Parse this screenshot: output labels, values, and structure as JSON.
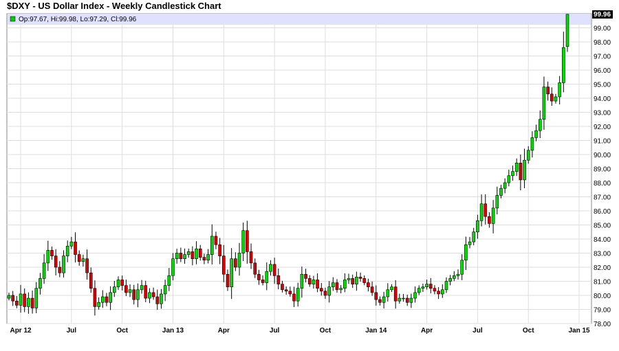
{
  "chart_data": {
    "type": "candlestick",
    "title": "$DXY - US Dollar Index - Weekly Candlestick Chart",
    "legend": {
      "placement": "top-left",
      "text": "Op:97.67, Hi:99.98, Lo:97.29, Cl:99.96",
      "color": "#00cc00"
    },
    "last_value_label": "99.96",
    "ylim": [
      78.0,
      100.0
    ],
    "y_ticks": [
      "78.00",
      "79.00",
      "80.00",
      "81.00",
      "82.00",
      "83.00",
      "84.00",
      "85.00",
      "86.00",
      "87.00",
      "88.00",
      "89.00",
      "90.00",
      "91.00",
      "92.00",
      "93.00",
      "94.00",
      "95.00",
      "96.00",
      "97.00",
      "98.00",
      "99.00"
    ],
    "x_ticks": [
      {
        "label": "Apr 12",
        "week": 3
      },
      {
        "label": "Jul",
        "week": 16
      },
      {
        "label": "Oct",
        "week": 29
      },
      {
        "label": "Jan 13",
        "week": 42
      },
      {
        "label": "Apr",
        "week": 55
      },
      {
        "label": "Jul",
        "week": 68
      },
      {
        "label": "Oct",
        "week": 81
      },
      {
        "label": "Jan 14",
        "week": 94
      },
      {
        "label": "Apr",
        "week": 107
      },
      {
        "label": "Jul",
        "week": 120
      },
      {
        "label": "Oct",
        "week": 133
      },
      {
        "label": "Jan 15",
        "week": 146
      }
    ],
    "colors": {
      "up": "#00dd00",
      "down": "#dd0000",
      "wick": "#000000",
      "grid": "#dddddd",
      "highlight": "#e0e0ff"
    },
    "weekly_close": [
      80.0,
      79.6,
      79.3,
      80.1,
      79.2,
      79.8,
      79.1,
      80.5,
      81.2,
      82.3,
      83.2,
      82.8,
      82.0,
      81.6,
      82.8,
      83.5,
      83.8,
      82.9,
      82.4,
      82.6,
      81.6,
      80.5,
      79.2,
      79.5,
      79.9,
      79.5,
      80.2,
      80.6,
      81.1,
      80.7,
      80.2,
      80.4,
      79.7,
      80.4,
      80.7,
      79.8,
      80.2,
      79.9,
      79.4,
      80.1,
      80.7,
      81.4,
      82.6,
      83.0,
      82.6,
      82.9,
      83.1,
      82.6,
      83.3,
      82.7,
      82.5,
      82.9,
      84.2,
      83.6,
      82.8,
      81.5,
      80.6,
      82.6,
      82.0,
      83.0,
      84.6,
      83.1,
      82.3,
      81.5,
      81.1,
      80.9,
      81.7,
      82.2,
      81.4,
      80.8,
      80.4,
      80.3,
      80.1,
      79.6,
      80.5,
      81.5,
      81.2,
      80.8,
      81.1,
      80.5,
      80.3,
      80.0,
      80.6,
      80.9,
      80.4,
      80.5,
      81.1,
      81.2,
      80.8,
      81.3,
      81.2,
      80.9,
      80.6,
      80.2,
      79.7,
      79.5,
      79.9,
      80.4,
      80.6,
      79.6,
      79.8,
      79.8,
      79.5,
      79.8,
      80.2,
      80.5,
      80.6,
      80.8,
      80.5,
      80.3,
      80.1,
      80.4,
      81.0,
      81.2,
      81.4,
      81.5,
      82.5,
      83.6,
      83.8,
      84.5,
      85.3,
      86.5,
      85.6,
      85.1,
      86.2,
      87.1,
      87.6,
      88.0,
      88.5,
      88.8,
      89.4,
      88.2,
      89.6,
      90.3,
      91.2,
      91.7,
      92.5,
      94.8,
      94.3,
      93.8,
      94.1,
      95.1,
      97.6,
      99.96
    ],
    "last_bar": {
      "open": 97.67,
      "high": 99.98,
      "low": 97.29,
      "close": 99.96
    }
  }
}
